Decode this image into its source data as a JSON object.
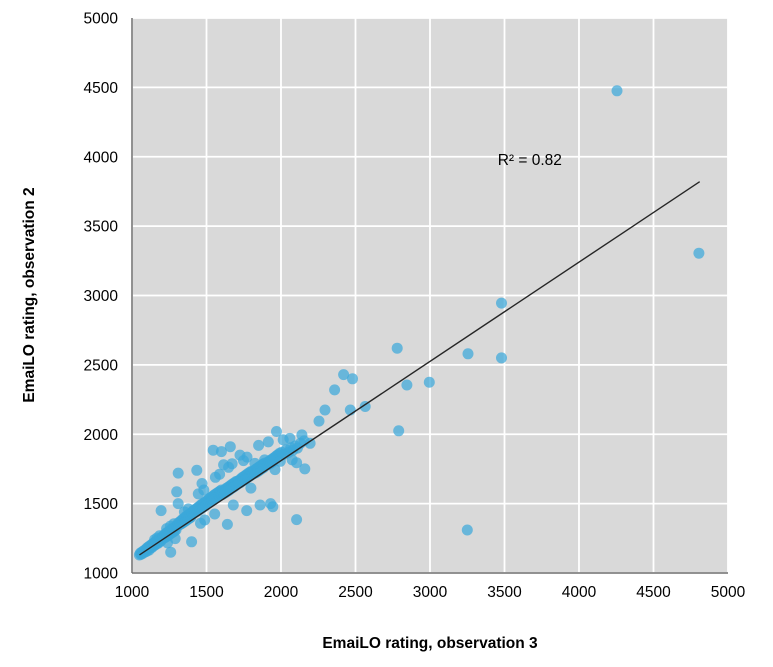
{
  "chart_data": {
    "type": "scatter",
    "title": "",
    "xlabel": "EmaiLO rating, observation 3",
    "ylabel": "EmaiLO rating, observation 2",
    "xlim": [
      1000,
      5000
    ],
    "ylim": [
      1000,
      5000
    ],
    "xticks": [
      1000,
      1500,
      2000,
      2500,
      3000,
      3500,
      4000,
      4500,
      5000
    ],
    "yticks": [
      1000,
      1500,
      2000,
      2500,
      3000,
      3500,
      4000,
      4500,
      5000
    ],
    "grid": true,
    "legend": "none",
    "plot_bg_color": "#d9d9d9",
    "grid_color": "#ffffff",
    "axis_line_color": "#6f6f6f",
    "tick_label_color": "#000000",
    "point_color": "#3ba8da",
    "point_opacity": 0.72,
    "annotation": {
      "text": "R² = 0.82",
      "x": 3670,
      "y": 3975
    },
    "r_squared": 0.82,
    "trendline": {
      "x1": 1050,
      "y1": 1130,
      "x2": 4810,
      "y2": 3820,
      "color": "#262626"
    },
    "points": [
      [
        1050,
        1130
      ],
      [
        1055,
        1142
      ],
      [
        1060,
        1135
      ],
      [
        1065,
        1150
      ],
      [
        1070,
        1140
      ],
      [
        1075,
        1158
      ],
      [
        1080,
        1148
      ],
      [
        1085,
        1165
      ],
      [
        1090,
        1152
      ],
      [
        1095,
        1170
      ],
      [
        1100,
        1158
      ],
      [
        1100,
        1180
      ],
      [
        1105,
        1175
      ],
      [
        1110,
        1188
      ],
      [
        1115,
        1165
      ],
      [
        1120,
        1195
      ],
      [
        1125,
        1180
      ],
      [
        1130,
        1205
      ],
      [
        1135,
        1185
      ],
      [
        1140,
        1212
      ],
      [
        1145,
        1195
      ],
      [
        1150,
        1220
      ],
      [
        1155,
        1202
      ],
      [
        1160,
        1228
      ],
      [
        1165,
        1210
      ],
      [
        1170,
        1235
      ],
      [
        1175,
        1215
      ],
      [
        1180,
        1242
      ],
      [
        1185,
        1225
      ],
      [
        1190,
        1250
      ],
      [
        1195,
        1232
      ],
      [
        1200,
        1258
      ],
      [
        1152,
        1240
      ],
      [
        1168,
        1252
      ],
      [
        1185,
        1268
      ],
      [
        1195,
        1450
      ],
      [
        1205,
        1248
      ],
      [
        1210,
        1268
      ],
      [
        1215,
        1252
      ],
      [
        1220,
        1278
      ],
      [
        1225,
        1258
      ],
      [
        1230,
        1288
      ],
      [
        1235,
        1265
      ],
      [
        1240,
        1295
      ],
      [
        1245,
        1272
      ],
      [
        1250,
        1302
      ],
      [
        1255,
        1280
      ],
      [
        1260,
        1310
      ],
      [
        1265,
        1288
      ],
      [
        1270,
        1318
      ],
      [
        1275,
        1295
      ],
      [
        1280,
        1325
      ],
      [
        1285,
        1302
      ],
      [
        1290,
        1332
      ],
      [
        1295,
        1310
      ],
      [
        1300,
        1340
      ],
      [
        1232,
        1320
      ],
      [
        1258,
        1338
      ],
      [
        1282,
        1355
      ],
      [
        1260,
        1150
      ],
      [
        1238,
        1218
      ],
      [
        1290,
        1248
      ],
      [
        1305,
        1340
      ],
      [
        1310,
        1360
      ],
      [
        1315,
        1345
      ],
      [
        1320,
        1368
      ],
      [
        1325,
        1352
      ],
      [
        1330,
        1378
      ],
      [
        1335,
        1358
      ],
      [
        1340,
        1388
      ],
      [
        1345,
        1365
      ],
      [
        1350,
        1395
      ],
      [
        1355,
        1372
      ],
      [
        1360,
        1405
      ],
      [
        1365,
        1380
      ],
      [
        1370,
        1412
      ],
      [
        1375,
        1388
      ],
      [
        1380,
        1420
      ],
      [
        1385,
        1395
      ],
      [
        1390,
        1428
      ],
      [
        1395,
        1402
      ],
      [
        1400,
        1435
      ],
      [
        1310,
        1720
      ],
      [
        1300,
        1585
      ],
      [
        1310,
        1500
      ],
      [
        1352,
        1440
      ],
      [
        1378,
        1462
      ],
      [
        1400,
        1225
      ],
      [
        1405,
        1428
      ],
      [
        1410,
        1448
      ],
      [
        1415,
        1432
      ],
      [
        1420,
        1455
      ],
      [
        1425,
        1438
      ],
      [
        1430,
        1462
      ],
      [
        1435,
        1445
      ],
      [
        1440,
        1470
      ],
      [
        1445,
        1450
      ],
      [
        1450,
        1478
      ],
      [
        1455,
        1458
      ],
      [
        1460,
        1488
      ],
      [
        1465,
        1465
      ],
      [
        1470,
        1495
      ],
      [
        1475,
        1472
      ],
      [
        1480,
        1502
      ],
      [
        1485,
        1480
      ],
      [
        1490,
        1510
      ],
      [
        1495,
        1488
      ],
      [
        1500,
        1518
      ],
      [
        1435,
        1740
      ],
      [
        1470,
        1645
      ],
      [
        1445,
        1570
      ],
      [
        1482,
        1598
      ],
      [
        1460,
        1358
      ],
      [
        1488,
        1382
      ],
      [
        1505,
        1505
      ],
      [
        1510,
        1528
      ],
      [
        1515,
        1510
      ],
      [
        1520,
        1538
      ],
      [
        1525,
        1515
      ],
      [
        1530,
        1545
      ],
      [
        1535,
        1522
      ],
      [
        1540,
        1552
      ],
      [
        1545,
        1530
      ],
      [
        1550,
        1560
      ],
      [
        1555,
        1538
      ],
      [
        1560,
        1568
      ],
      [
        1565,
        1545
      ],
      [
        1570,
        1575
      ],
      [
        1575,
        1552
      ],
      [
        1580,
        1582
      ],
      [
        1585,
        1560
      ],
      [
        1590,
        1590
      ],
      [
        1595,
        1568
      ],
      [
        1600,
        1598
      ],
      [
        1545,
        1885
      ],
      [
        1600,
        1875
      ],
      [
        1615,
        1780
      ],
      [
        1560,
        1690
      ],
      [
        1588,
        1712
      ],
      [
        1555,
        1425
      ],
      [
        1605,
        1565
      ],
      [
        1610,
        1588
      ],
      [
        1615,
        1572
      ],
      [
        1620,
        1598
      ],
      [
        1625,
        1578
      ],
      [
        1630,
        1608
      ],
      [
        1635,
        1585
      ],
      [
        1640,
        1615
      ],
      [
        1645,
        1592
      ],
      [
        1650,
        1622
      ],
      [
        1655,
        1600
      ],
      [
        1660,
        1630
      ],
      [
        1665,
        1608
      ],
      [
        1670,
        1638
      ],
      [
        1675,
        1615
      ],
      [
        1680,
        1645
      ],
      [
        1685,
        1622
      ],
      [
        1690,
        1652
      ],
      [
        1695,
        1630
      ],
      [
        1700,
        1660
      ],
      [
        1660,
        1910
      ],
      [
        1725,
        1850
      ],
      [
        1648,
        1762
      ],
      [
        1672,
        1788
      ],
      [
        1640,
        1350
      ],
      [
        1680,
        1490
      ],
      [
        1705,
        1638
      ],
      [
        1710,
        1660
      ],
      [
        1715,
        1645
      ],
      [
        1720,
        1668
      ],
      [
        1725,
        1650
      ],
      [
        1730,
        1678
      ],
      [
        1735,
        1658
      ],
      [
        1740,
        1688
      ],
      [
        1745,
        1665
      ],
      [
        1750,
        1695
      ],
      [
        1755,
        1672
      ],
      [
        1760,
        1702
      ],
      [
        1765,
        1680
      ],
      [
        1770,
        1710
      ],
      [
        1775,
        1688
      ],
      [
        1780,
        1718
      ],
      [
        1785,
        1695
      ],
      [
        1790,
        1725
      ],
      [
        1795,
        1702
      ],
      [
        1800,
        1732
      ],
      [
        1748,
        1810
      ],
      [
        1772,
        1835
      ],
      [
        1770,
        1450
      ],
      [
        1798,
        1612
      ],
      [
        1805,
        1710
      ],
      [
        1810,
        1730
      ],
      [
        1815,
        1715
      ],
      [
        1820,
        1738
      ],
      [
        1825,
        1720
      ],
      [
        1830,
        1748
      ],
      [
        1835,
        1725
      ],
      [
        1840,
        1755
      ],
      [
        1845,
        1732
      ],
      [
        1850,
        1762
      ],
      [
        1855,
        1740
      ],
      [
        1860,
        1770
      ],
      [
        1865,
        1748
      ],
      [
        1870,
        1778
      ],
      [
        1875,
        1755
      ],
      [
        1880,
        1785
      ],
      [
        1885,
        1762
      ],
      [
        1890,
        1792
      ],
      [
        1850,
        1920
      ],
      [
        1825,
        1790
      ],
      [
        1890,
        1815
      ],
      [
        1860,
        1490
      ],
      [
        1905,
        1778
      ],
      [
        1910,
        1798
      ],
      [
        1915,
        1782
      ],
      [
        1920,
        1805
      ],
      [
        1925,
        1788
      ],
      [
        1930,
        1812
      ],
      [
        1935,
        1795
      ],
      [
        1940,
        1820
      ],
      [
        1945,
        1802
      ],
      [
        1950,
        1828
      ],
      [
        1960,
        1835
      ],
      [
        1970,
        1845
      ],
      [
        1980,
        1852
      ],
      [
        1990,
        1862
      ],
      [
        1915,
        1945
      ],
      [
        1995,
        1805
      ],
      [
        1930,
        1500
      ],
      [
        1945,
        1478
      ],
      [
        2005,
        1870
      ],
      [
        2020,
        1855
      ],
      [
        2035,
        1888
      ],
      [
        2050,
        1870
      ],
      [
        2065,
        1902
      ],
      [
        2080,
        1885
      ],
      [
        2095,
        1915
      ],
      [
        2110,
        1900
      ],
      [
        2130,
        1935
      ],
      [
        2155,
        1952
      ],
      [
        2015,
        1960
      ],
      [
        2060,
        1970
      ],
      [
        1970,
        2020
      ],
      [
        2140,
        1995
      ],
      [
        2195,
        1935
      ],
      [
        1960,
        1745
      ],
      [
        2075,
        1815
      ],
      [
        2105,
        1795
      ],
      [
        2160,
        1750
      ],
      [
        2105,
        1385
      ],
      [
        2255,
        2095
      ],
      [
        2295,
        2175
      ],
      [
        2360,
        2320
      ],
      [
        2420,
        2430
      ],
      [
        2465,
        2175
      ],
      [
        2480,
        2400
      ],
      [
        2565,
        2200
      ],
      [
        2780,
        2620
      ],
      [
        2790,
        2025
      ],
      [
        2845,
        2355
      ],
      [
        2995,
        2375
      ],
      [
        3250,
        1310
      ],
      [
        3255,
        2580
      ],
      [
        3480,
        2550
      ],
      [
        3480,
        2945
      ],
      [
        4255,
        4475
      ],
      [
        4805,
        3305
      ]
    ]
  }
}
